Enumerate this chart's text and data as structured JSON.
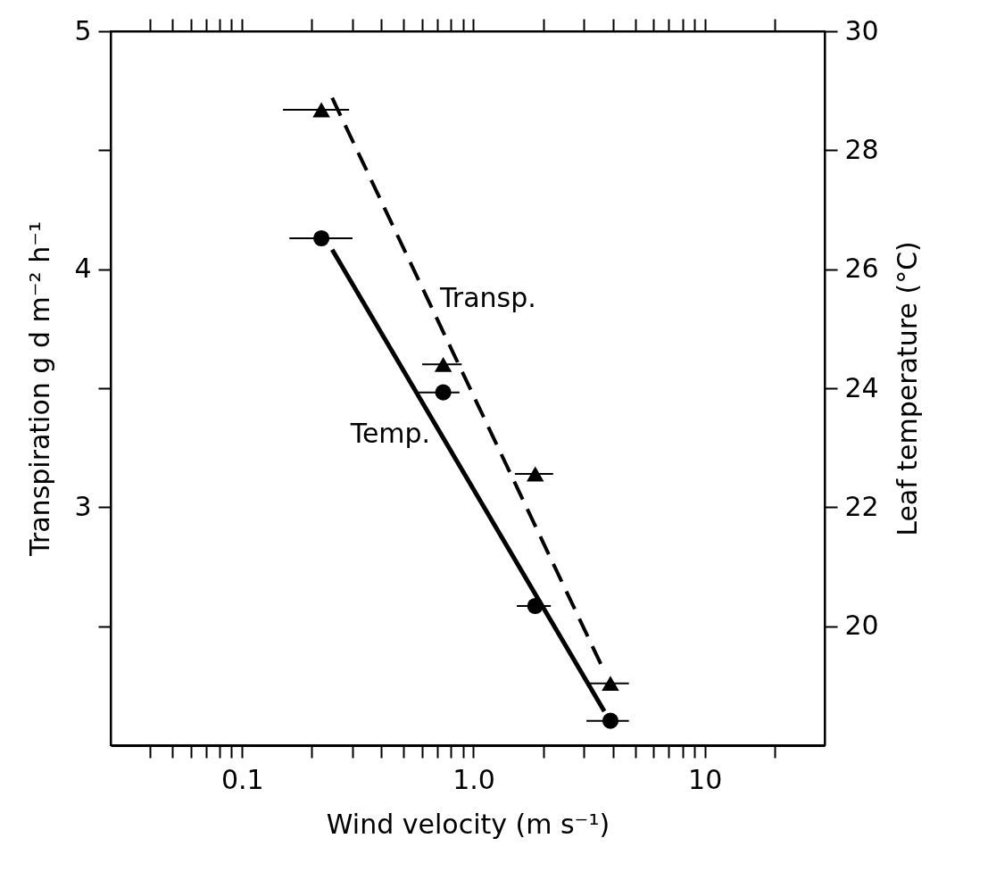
{
  "chart_data": {
    "type": "scatter",
    "xlabel": "Wind velocity (m s⁻¹)",
    "ylabel": "Transpiration g d m⁻² h⁻¹",
    "y2label": "Leaf temperature (°C)",
    "log": "x",
    "grid": false,
    "xlim": [
      0.027,
      33
    ],
    "xticks": [
      {
        "value": 0.04,
        "label": null
      },
      {
        "value": 0.05,
        "label": null
      },
      {
        "value": 0.06,
        "label": null
      },
      {
        "value": 0.07,
        "label": null
      },
      {
        "value": 0.08,
        "label": null
      },
      {
        "value": 0.09,
        "label": null
      },
      {
        "value": 0.1,
        "label": "0.1"
      },
      {
        "value": 0.2,
        "label": null
      },
      {
        "value": 0.3,
        "label": null
      },
      {
        "value": 0.4,
        "label": null
      },
      {
        "value": 0.5,
        "label": null
      },
      {
        "value": 0.6,
        "label": null
      },
      {
        "value": 0.7,
        "label": null
      },
      {
        "value": 0.8,
        "label": null
      },
      {
        "value": 0.9,
        "label": null
      },
      {
        "value": 1,
        "label": "1.0"
      },
      {
        "value": 2,
        "label": null
      },
      {
        "value": 3,
        "label": null
      },
      {
        "value": 4,
        "label": null
      },
      {
        "value": 5,
        "label": null
      },
      {
        "value": 6,
        "label": null
      },
      {
        "value": 7,
        "label": null
      },
      {
        "value": 8,
        "label": null
      },
      {
        "value": 9,
        "label": null
      },
      {
        "value": 10,
        "label": "10"
      },
      {
        "value": 20,
        "label": null
      }
    ],
    "ylim": [
      2,
      5
    ],
    "yticks": [
      {
        "value": 2.5,
        "label": null
      },
      3,
      {
        "value": 3.5,
        "label": null
      },
      4,
      {
        "value": 4.5,
        "label": null
      },
      5
    ],
    "y2lim": [
      18,
      30
    ],
    "y2ticks": [
      20,
      22,
      24,
      26,
      28,
      30
    ],
    "series": [
      {
        "type": "scatter",
        "marker": "triangle",
        "color": "#000000",
        "x": [
          0.22,
          0.74,
          1.85,
          3.91
        ],
        "values": [
          4.67,
          3.6,
          3.14,
          2.26
        ],
        "xerrors": [
          [
            0.15,
            0.29
          ],
          [
            0.6,
            0.89
          ],
          [
            1.51,
            2.21
          ],
          [
            3.08,
            4.7
          ]
        ]
      },
      {
        "type": "scatter",
        "axis": "y2",
        "marker": "circle",
        "color": "#000000",
        "x": [
          0.22,
          0.74,
          1.85,
          3.91
        ],
        "values": [
          26.52,
          23.93,
          20.34,
          18.41
        ],
        "xerrors": [
          [
            0.16,
            0.3
          ],
          [
            0.58,
            0.87
          ],
          [
            1.54,
            2.16
          ],
          [
            3.08,
            4.7
          ]
        ]
      },
      {
        "name": "Transp.",
        "type": "line",
        "line_style": "dashed",
        "color": "#000000",
        "x": [
          0.245,
          3.68
        ],
        "values": [
          4.72,
          2.31
        ]
      },
      {
        "name": "Temp.",
        "type": "line",
        "axis": "y2",
        "line_style": "solid",
        "color": "#000000",
        "x": [
          0.245,
          3.68
        ],
        "values": [
          26.33,
          18.57
        ]
      }
    ]
  }
}
